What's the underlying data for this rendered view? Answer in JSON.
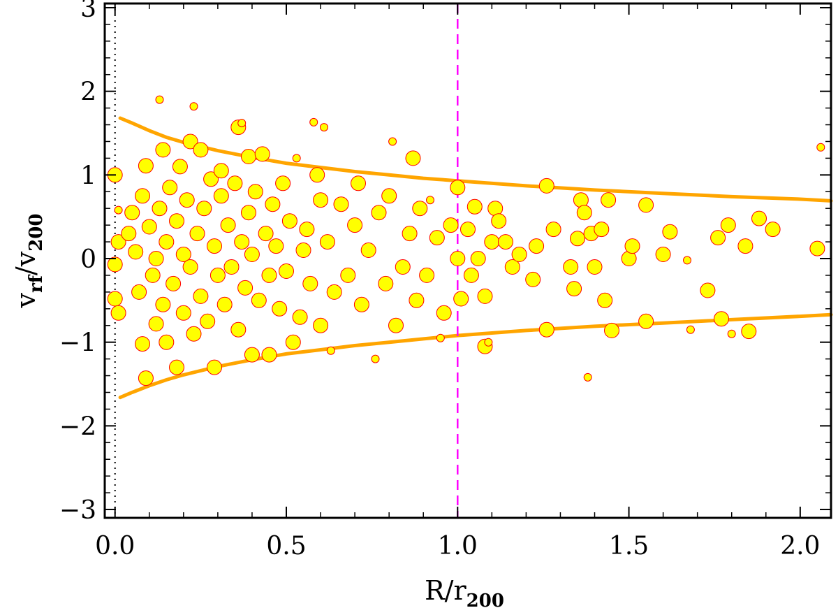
{
  "chart_data": {
    "type": "scatter",
    "title": "",
    "xlabel": {
      "base": "R/r",
      "sub": "200"
    },
    "ylabel": {
      "base1": "v",
      "sub1": "rf",
      "mid": "/v",
      "sub2": "200"
    },
    "xlim": [
      -0.03,
      2.09
    ],
    "ylim": [
      -3.1,
      3.05
    ],
    "x_ticks": [
      0.0,
      0.5,
      1.0,
      1.5,
      2.0
    ],
    "x_tick_labels": [
      "0.0",
      "0.5",
      "1.0",
      "1.5",
      "2.0"
    ],
    "y_ticks": [
      -3,
      -2,
      -1,
      0,
      1,
      2,
      3
    ],
    "y_tick_labels": [
      "−3",
      "−2",
      "−1",
      "0",
      "1",
      "2",
      "3"
    ],
    "grid": false,
    "reference_lines": [
      {
        "orientation": "vertical",
        "x": 0.0,
        "style": "dotted",
        "color": "#000000"
      },
      {
        "orientation": "vertical",
        "x": 1.0,
        "style": "dashed",
        "color": "#ff00ff"
      }
    ],
    "envelope": {
      "color": "#ffa500",
      "x": [
        0.015,
        0.05,
        0.1,
        0.15,
        0.2,
        0.3,
        0.4,
        0.5,
        0.6,
        0.7,
        0.8,
        0.9,
        1.0,
        1.2,
        1.4,
        1.6,
        1.8,
        2.0,
        2.09
      ],
      "upper": [
        1.68,
        1.62,
        1.53,
        1.45,
        1.39,
        1.29,
        1.21,
        1.14,
        1.09,
        1.04,
        1.0,
        0.96,
        0.93,
        0.87,
        0.82,
        0.78,
        0.74,
        0.71,
        0.69
      ],
      "lower": [
        -1.66,
        -1.6,
        -1.52,
        -1.45,
        -1.39,
        -1.29,
        -1.21,
        -1.14,
        -1.09,
        -1.04,
        -1.0,
        -0.96,
        -0.92,
        -0.86,
        -0.81,
        -0.77,
        -0.73,
        -0.69,
        -0.67
      ]
    },
    "marker": {
      "fill": "#ffff00",
      "stroke": "#ff0000",
      "shape": "circle"
    },
    "points": [
      {
        "x": 0.0,
        "y": 1.0,
        "s": 2
      },
      {
        "x": 0.01,
        "y": 0.2,
        "s": 2
      },
      {
        "x": 0.0,
        "y": -0.07,
        "s": 2
      },
      {
        "x": 0.0,
        "y": -0.48,
        "s": 2
      },
      {
        "x": 0.01,
        "y": -0.65,
        "s": 2
      },
      {
        "x": 0.01,
        "y": 0.58,
        "s": 1
      },
      {
        "x": 0.04,
        "y": 0.3,
        "s": 2
      },
      {
        "x": 0.05,
        "y": 0.55,
        "s": 2
      },
      {
        "x": 0.06,
        "y": 0.08,
        "s": 2
      },
      {
        "x": 0.07,
        "y": -0.4,
        "s": 2
      },
      {
        "x": 0.08,
        "y": 0.75,
        "s": 2
      },
      {
        "x": 0.08,
        "y": -1.02,
        "s": 2
      },
      {
        "x": 0.09,
        "y": 1.11,
        "s": 2
      },
      {
        "x": 0.09,
        "y": -1.43,
        "s": 2
      },
      {
        "x": 0.1,
        "y": 0.38,
        "s": 2
      },
      {
        "x": 0.11,
        "y": -0.2,
        "s": 2
      },
      {
        "x": 0.12,
        "y": 0.0,
        "s": 2
      },
      {
        "x": 0.12,
        "y": -0.78,
        "s": 2
      },
      {
        "x": 0.13,
        "y": 0.6,
        "s": 2
      },
      {
        "x": 0.13,
        "y": 1.9,
        "s": 1
      },
      {
        "x": 0.14,
        "y": 1.3,
        "s": 2
      },
      {
        "x": 0.14,
        "y": -0.55,
        "s": 2
      },
      {
        "x": 0.15,
        "y": 0.2,
        "s": 2
      },
      {
        "x": 0.15,
        "y": -1.0,
        "s": 2
      },
      {
        "x": 0.16,
        "y": 0.85,
        "s": 2
      },
      {
        "x": 0.17,
        "y": -0.3,
        "s": 2
      },
      {
        "x": 0.18,
        "y": 0.45,
        "s": 2
      },
      {
        "x": 0.18,
        "y": -1.3,
        "s": 2
      },
      {
        "x": 0.19,
        "y": 1.1,
        "s": 2
      },
      {
        "x": 0.2,
        "y": 0.05,
        "s": 2
      },
      {
        "x": 0.2,
        "y": -0.65,
        "s": 2
      },
      {
        "x": 0.21,
        "y": 0.7,
        "s": 2
      },
      {
        "x": 0.22,
        "y": -0.1,
        "s": 2
      },
      {
        "x": 0.22,
        "y": 1.4,
        "s": 2
      },
      {
        "x": 0.23,
        "y": 1.82,
        "s": 1
      },
      {
        "x": 0.23,
        "y": -0.9,
        "s": 2
      },
      {
        "x": 0.24,
        "y": 0.3,
        "s": 2
      },
      {
        "x": 0.25,
        "y": 1.3,
        "s": 2
      },
      {
        "x": 0.25,
        "y": -0.45,
        "s": 2
      },
      {
        "x": 0.26,
        "y": 0.6,
        "s": 2
      },
      {
        "x": 0.27,
        "y": -0.75,
        "s": 2
      },
      {
        "x": 0.28,
        "y": 0.95,
        "s": 2
      },
      {
        "x": 0.29,
        "y": 0.15,
        "s": 2
      },
      {
        "x": 0.29,
        "y": -1.3,
        "s": 2
      },
      {
        "x": 0.3,
        "y": -0.2,
        "s": 2
      },
      {
        "x": 0.31,
        "y": 0.75,
        "s": 2
      },
      {
        "x": 0.31,
        "y": 1.05,
        "s": 2
      },
      {
        "x": 0.32,
        "y": -0.55,
        "s": 2
      },
      {
        "x": 0.33,
        "y": 0.4,
        "s": 2
      },
      {
        "x": 0.34,
        "y": -0.1,
        "s": 2
      },
      {
        "x": 0.35,
        "y": 0.9,
        "s": 2
      },
      {
        "x": 0.36,
        "y": 1.57,
        "s": 2
      },
      {
        "x": 0.36,
        "y": -0.85,
        "s": 2
      },
      {
        "x": 0.37,
        "y": 0.2,
        "s": 2
      },
      {
        "x": 0.37,
        "y": 1.62,
        "s": 1
      },
      {
        "x": 0.38,
        "y": -0.35,
        "s": 2
      },
      {
        "x": 0.39,
        "y": 1.22,
        "s": 2
      },
      {
        "x": 0.39,
        "y": 0.55,
        "s": 2
      },
      {
        "x": 0.4,
        "y": -1.15,
        "s": 2
      },
      {
        "x": 0.4,
        "y": 0.05,
        "s": 2
      },
      {
        "x": 0.41,
        "y": 0.8,
        "s": 2
      },
      {
        "x": 0.42,
        "y": -0.5,
        "s": 2
      },
      {
        "x": 0.43,
        "y": 1.25,
        "s": 2
      },
      {
        "x": 0.44,
        "y": 0.3,
        "s": 2
      },
      {
        "x": 0.45,
        "y": -0.2,
        "s": 2
      },
      {
        "x": 0.45,
        "y": -1.15,
        "s": 2
      },
      {
        "x": 0.46,
        "y": 0.65,
        "s": 2
      },
      {
        "x": 0.47,
        "y": 0.15,
        "s": 2
      },
      {
        "x": 0.48,
        "y": -0.6,
        "s": 2
      },
      {
        "x": 0.49,
        "y": 0.9,
        "s": 2
      },
      {
        "x": 0.5,
        "y": -0.15,
        "s": 2
      },
      {
        "x": 0.51,
        "y": 0.45,
        "s": 2
      },
      {
        "x": 0.52,
        "y": -1.0,
        "s": 2
      },
      {
        "x": 0.53,
        "y": 1.2,
        "s": 1
      },
      {
        "x": 0.54,
        "y": -0.7,
        "s": 2
      },
      {
        "x": 0.55,
        "y": 0.1,
        "s": 2
      },
      {
        "x": 0.56,
        "y": 0.35,
        "s": 2
      },
      {
        "x": 0.57,
        "y": -0.3,
        "s": 2
      },
      {
        "x": 0.58,
        "y": 1.63,
        "s": 1
      },
      {
        "x": 0.59,
        "y": 1.0,
        "s": 2
      },
      {
        "x": 0.6,
        "y": 0.7,
        "s": 2
      },
      {
        "x": 0.6,
        "y": -0.8,
        "s": 2
      },
      {
        "x": 0.61,
        "y": 1.57,
        "s": 1
      },
      {
        "x": 0.62,
        "y": 0.2,
        "s": 2
      },
      {
        "x": 0.63,
        "y": -1.1,
        "s": 1
      },
      {
        "x": 0.64,
        "y": -0.4,
        "s": 2
      },
      {
        "x": 0.66,
        "y": 0.65,
        "s": 2
      },
      {
        "x": 0.68,
        "y": -0.2,
        "s": 2
      },
      {
        "x": 0.7,
        "y": 0.4,
        "s": 2
      },
      {
        "x": 0.71,
        "y": 0.9,
        "s": 2
      },
      {
        "x": 0.72,
        "y": -0.55,
        "s": 2
      },
      {
        "x": 0.74,
        "y": 0.1,
        "s": 2
      },
      {
        "x": 0.76,
        "y": -1.2,
        "s": 1
      },
      {
        "x": 0.77,
        "y": 0.55,
        "s": 2
      },
      {
        "x": 0.79,
        "y": -0.3,
        "s": 2
      },
      {
        "x": 0.8,
        "y": 0.75,
        "s": 2
      },
      {
        "x": 0.81,
        "y": 1.4,
        "s": 1
      },
      {
        "x": 0.82,
        "y": -0.8,
        "s": 2
      },
      {
        "x": 0.84,
        "y": -0.1,
        "s": 2
      },
      {
        "x": 0.86,
        "y": 0.3,
        "s": 2
      },
      {
        "x": 0.87,
        "y": 1.2,
        "s": 2
      },
      {
        "x": 0.88,
        "y": -0.5,
        "s": 2
      },
      {
        "x": 0.89,
        "y": 0.6,
        "s": 2
      },
      {
        "x": 0.91,
        "y": -0.2,
        "s": 2
      },
      {
        "x": 0.92,
        "y": 0.7,
        "s": 1
      },
      {
        "x": 0.94,
        "y": 0.25,
        "s": 2
      },
      {
        "x": 0.95,
        "y": -0.95,
        "s": 1
      },
      {
        "x": 0.96,
        "y": -0.65,
        "s": 2
      },
      {
        "x": 0.98,
        "y": 0.4,
        "s": 2
      },
      {
        "x": 1.0,
        "y": 0.85,
        "s": 2
      },
      {
        "x": 1.0,
        "y": 0.0,
        "s": 2
      },
      {
        "x": 1.01,
        "y": -0.48,
        "s": 2
      },
      {
        "x": 1.03,
        "y": 0.35,
        "s": 2
      },
      {
        "x": 1.04,
        "y": -0.2,
        "s": 2
      },
      {
        "x": 1.05,
        "y": 0.62,
        "s": 2
      },
      {
        "x": 1.06,
        "y": 0.0,
        "s": 2
      },
      {
        "x": 1.08,
        "y": -0.45,
        "s": 2
      },
      {
        "x": 1.08,
        "y": -1.05,
        "s": 2
      },
      {
        "x": 1.09,
        "y": -1.0,
        "s": 1
      },
      {
        "x": 1.1,
        "y": 0.2,
        "s": 2
      },
      {
        "x": 1.11,
        "y": 0.6,
        "s": 2
      },
      {
        "x": 1.12,
        "y": 0.45,
        "s": 2
      },
      {
        "x": 1.14,
        "y": 0.2,
        "s": 2
      },
      {
        "x": 1.16,
        "y": -0.1,
        "s": 2
      },
      {
        "x": 1.18,
        "y": 0.05,
        "s": 2
      },
      {
        "x": 1.22,
        "y": -0.25,
        "s": 2
      },
      {
        "x": 1.23,
        "y": 0.15,
        "s": 2
      },
      {
        "x": 1.26,
        "y": 0.87,
        "s": 2
      },
      {
        "x": 1.26,
        "y": -0.85,
        "s": 2
      },
      {
        "x": 1.28,
        "y": 0.35,
        "s": 2
      },
      {
        "x": 1.33,
        "y": -0.1,
        "s": 2
      },
      {
        "x": 1.34,
        "y": -0.36,
        "s": 2
      },
      {
        "x": 1.35,
        "y": 0.24,
        "s": 2
      },
      {
        "x": 1.36,
        "y": 0.7,
        "s": 2
      },
      {
        "x": 1.37,
        "y": 0.55,
        "s": 2
      },
      {
        "x": 1.38,
        "y": -1.42,
        "s": 1
      },
      {
        "x": 1.39,
        "y": 0.3,
        "s": 2
      },
      {
        "x": 1.4,
        "y": -0.1,
        "s": 2
      },
      {
        "x": 1.42,
        "y": 0.35,
        "s": 2
      },
      {
        "x": 1.43,
        "y": -0.5,
        "s": 2
      },
      {
        "x": 1.44,
        "y": 0.7,
        "s": 2
      },
      {
        "x": 1.45,
        "y": -0.86,
        "s": 2
      },
      {
        "x": 1.5,
        "y": 0.0,
        "s": 2
      },
      {
        "x": 1.51,
        "y": 0.15,
        "s": 2
      },
      {
        "x": 1.55,
        "y": 0.64,
        "s": 2
      },
      {
        "x": 1.55,
        "y": -0.75,
        "s": 2
      },
      {
        "x": 1.6,
        "y": 0.05,
        "s": 2
      },
      {
        "x": 1.62,
        "y": 0.32,
        "s": 2
      },
      {
        "x": 1.67,
        "y": -0.02,
        "s": 1
      },
      {
        "x": 1.68,
        "y": -0.85,
        "s": 1
      },
      {
        "x": 1.73,
        "y": -0.38,
        "s": 2
      },
      {
        "x": 1.76,
        "y": 0.25,
        "s": 2
      },
      {
        "x": 1.77,
        "y": -0.72,
        "s": 2
      },
      {
        "x": 1.79,
        "y": 0.4,
        "s": 2
      },
      {
        "x": 1.8,
        "y": -0.9,
        "s": 1
      },
      {
        "x": 1.84,
        "y": 0.15,
        "s": 2
      },
      {
        "x": 1.85,
        "y": -0.87,
        "s": 2
      },
      {
        "x": 1.88,
        "y": 0.48,
        "s": 2
      },
      {
        "x": 1.92,
        "y": 0.35,
        "s": 2
      },
      {
        "x": 2.05,
        "y": 0.12,
        "s": 2
      },
      {
        "x": 2.06,
        "y": 1.33,
        "s": 1
      }
    ]
  }
}
